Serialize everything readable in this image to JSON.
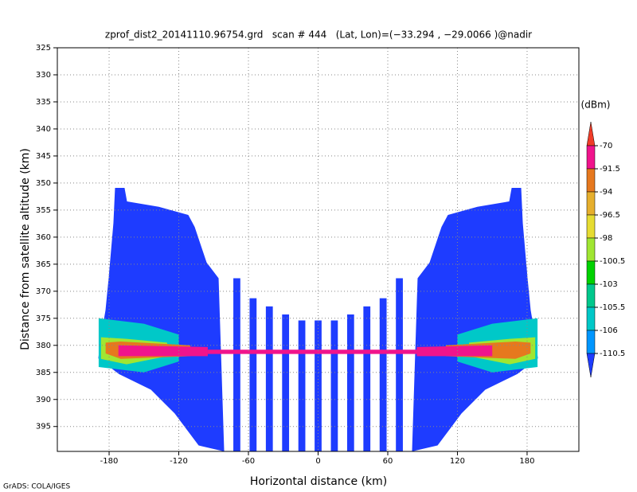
{
  "chart_data": {
    "type": "shaded",
    "title": "zprof_dist2_20141110.96754.grd   scan # 444   (Lat, Lon)=(−33.294 , −29.0066 )@nadir",
    "xlabel": "Horizontal distance (km)",
    "ylabel": "Distance from satellite altitude (km)",
    "footer": "GrADS: COLA/IGES",
    "xlim": [
      -224.6,
      224.6
    ],
    "ylim": [
      325,
      399.6
    ],
    "y_reversed": true,
    "grid": true,
    "xticks": [
      -180,
      -120,
      -60,
      0,
      60,
      120,
      180
    ],
    "yticks": [
      325,
      330,
      335,
      340,
      345,
      350,
      355,
      360,
      365,
      370,
      375,
      380,
      385,
      390,
      395
    ],
    "colorbar": {
      "unit": "(dBm)",
      "levels": [
        -70,
        -91.5,
        -94,
        -96.5,
        -98,
        -100.5,
        -103,
        -105.5,
        -106,
        -110.5
      ],
      "colors": [
        "#f03c28",
        "#f0148c",
        "#e6781e",
        "#e6af2d",
        "#e6dc32",
        "#a0e632",
        "#00d200",
        "#00c88c",
        "#00c8c8",
        "#0096ff",
        "#1e3cff"
      ]
    },
    "regions": [
      {
        "value": -112,
        "x": [
          -174.9,
          -166.7,
          -164.6,
          -137.2,
          -111.8,
          -106.3,
          -96,
          -85.7,
          -80.9,
          -102.9,
          -123.5,
          -144,
          -171.5,
          -189.3,
          -186.6,
          -183.1,
          -180.4,
          -176.3
        ],
        "y": [
          350.9,
          350.9,
          353.4,
          354.4,
          355.9,
          358.1,
          364.7,
          367.6,
          399.6,
          398.5,
          392.6,
          388.2,
          385.3,
          382.4,
          377.9,
          373.5,
          367.6,
          357.4
        ]
      },
      {
        "value": -112,
        "x": [
          174.9,
          166.7,
          164.6,
          137.2,
          111.8,
          106.3,
          96,
          85.7,
          80.9,
          102.9,
          123.5,
          144,
          171.5,
          189.3,
          186.6,
          183.1,
          180.4,
          176.3
        ],
        "y": [
          350.9,
          350.9,
          353.4,
          354.4,
          355.9,
          358.1,
          364.7,
          367.6,
          399.6,
          398.5,
          392.6,
          388.2,
          385.3,
          382.4,
          377.9,
          373.5,
          367.6,
          357.4
        ]
      },
      {
        "value": -112,
        "x": [
          -73,
          -67,
          -67,
          -73
        ],
        "y": [
          367.6,
          367.6,
          399.6,
          399.6
        ]
      },
      {
        "value": -112,
        "x": [
          -59,
          -53,
          -53,
          -59
        ],
        "y": [
          371.3,
          371.3,
          399.6,
          399.6
        ]
      },
      {
        "value": -112,
        "x": [
          -45,
          -39,
          -39,
          -45
        ],
        "y": [
          372.8,
          372.8,
          399.6,
          399.6
        ]
      },
      {
        "value": -112,
        "x": [
          -31,
          -25,
          -25,
          -31
        ],
        "y": [
          374.3,
          374.3,
          399.6,
          399.6
        ]
      },
      {
        "value": -112,
        "x": [
          -17,
          -11,
          -11,
          -17
        ],
        "y": [
          375.4,
          375.4,
          399.6,
          399.6
        ]
      },
      {
        "value": -112,
        "x": [
          -3,
          3,
          3,
          -3
        ],
        "y": [
          375.4,
          375.4,
          399.6,
          399.6
        ]
      },
      {
        "value": -112,
        "x": [
          11,
          17,
          17,
          11
        ],
        "y": [
          375.4,
          375.4,
          399.6,
          399.6
        ]
      },
      {
        "value": -112,
        "x": [
          25,
          31,
          31,
          25
        ],
        "y": [
          374.3,
          374.3,
          399.6,
          399.6
        ]
      },
      {
        "value": -112,
        "x": [
          39,
          45,
          45,
          39
        ],
        "y": [
          372.8,
          372.8,
          399.6,
          399.6
        ]
      },
      {
        "value": -112,
        "x": [
          53,
          59,
          59,
          53
        ],
        "y": [
          371.3,
          371.3,
          399.6,
          399.6
        ]
      },
      {
        "value": -112,
        "x": [
          67,
          73,
          73,
          67
        ],
        "y": [
          367.6,
          367.6,
          399.6,
          399.6
        ]
      },
      {
        "value": -106,
        "x": [
          -189,
          -150,
          -120,
          -120,
          -150,
          -189
        ],
        "y": [
          375,
          376,
          378,
          383,
          385,
          384
        ]
      },
      {
        "value": -106,
        "x": [
          189,
          150,
          120,
          120,
          150,
          189
        ],
        "y": [
          375,
          376,
          378,
          383,
          385,
          384
        ]
      },
      {
        "value": -100.5,
        "x": [
          -187,
          -165,
          -130,
          -130,
          -165,
          -187
        ],
        "y": [
          378.5,
          378.8,
          379.5,
          382,
          383.5,
          382.5
        ]
      },
      {
        "value": -100.5,
        "x": [
          187,
          165,
          130,
          130,
          165,
          187
        ],
        "y": [
          378.5,
          378.8,
          379.5,
          382,
          383.5,
          382.5
        ]
      },
      {
        "value": -94,
        "x": [
          -183,
          -170,
          -110,
          -110,
          -170,
          -183
        ],
        "y": [
          379.5,
          379.3,
          380,
          382,
          382.5,
          381.5
        ]
      },
      {
        "value": -94,
        "x": [
          183,
          170,
          110,
          110,
          170,
          183
        ],
        "y": [
          379.5,
          379.3,
          380,
          382,
          382.5,
          381.5
        ]
      },
      {
        "value": -85,
        "x": [
          -172,
          -95,
          -95,
          -172
        ],
        "y": [
          380,
          380.3,
          382,
          382
        ]
      },
      {
        "value": -85,
        "x": [
          150,
          85,
          85,
          150
        ],
        "y": [
          380,
          380.3,
          382,
          382
        ]
      },
      {
        "value": -85,
        "x": [
          -95,
          95,
          95,
          -95
        ],
        "y": [
          380.8,
          380.8,
          381.6,
          381.6
        ]
      }
    ]
  }
}
